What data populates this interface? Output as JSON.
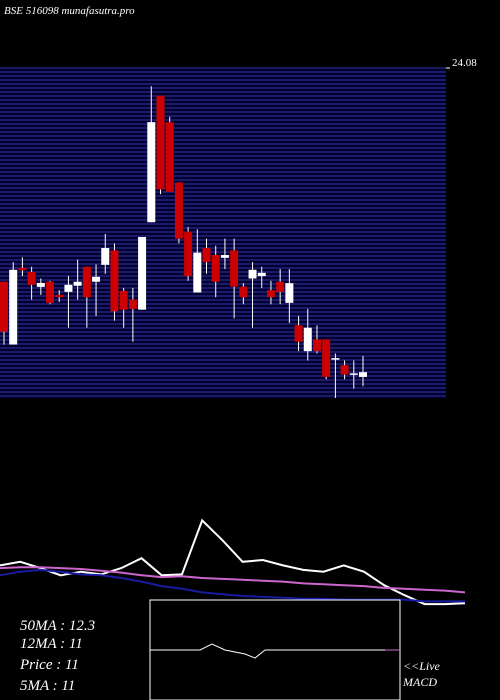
{
  "chart_data": {
    "type": "candlestick",
    "title": "BSE 516098 munafasutra.pro",
    "ylim": [
      10,
      24.08
    ],
    "yticks": [
      24.08
    ],
    "up_color": "#ffffff",
    "down_color": "#cc0000",
    "band_color": "#000033",
    "band_line_color": "#33339a",
    "open": [
      14.96,
      12.28,
      15.55,
      15.38,
      14.74,
      14.96,
      14.4,
      14.53,
      14.79,
      15.6,
      14.96,
      15.68,
      16.3,
      14.57,
      14.2,
      13.77,
      17.5,
      22.9,
      21.77,
      19.2,
      17.1,
      14.5,
      16.4,
      16.1,
      15.98,
      16.3,
      14.75,
      15.1,
      15.2,
      14.6,
      14.96,
      14.06,
      13.1,
      12.0,
      12.5,
      12.5,
      11.7,
      11.4,
      11.0,
      10.9
    ],
    "high": [
      14.96,
      15.8,
      16.0,
      15.6,
      15.1,
      15.0,
      14.6,
      15.2,
      15.9,
      15.6,
      15.7,
      17.0,
      16.6,
      14.7,
      14.7,
      16.87,
      23.3,
      22.9,
      22.0,
      19.2,
      17.3,
      17.2,
      16.8,
      16.5,
      16.8,
      16.8,
      14.9,
      15.8,
      15.6,
      15.0,
      15.5,
      15.5,
      13.5,
      13.8,
      13.1,
      12.5,
      11.9,
      11.6,
      11.6,
      11.8
    ],
    "low": [
      12.28,
      12.28,
      15.2,
      14.2,
      14.4,
      14.0,
      14.1,
      13.0,
      14.2,
      13.0,
      13.5,
      15.3,
      13.3,
      13.0,
      12.4,
      13.77,
      17.5,
      18.7,
      18.8,
      16.6,
      15.0,
      14.5,
      15.3,
      14.3,
      15.5,
      13.4,
      14.0,
      13.0,
      14.7,
      14.0,
      14.0,
      13.2,
      12.0,
      11.6,
      11.9,
      10.8,
      10.0,
      10.8,
      10.4,
      10.5
    ],
    "close": [
      12.83,
      15.47,
      15.45,
      14.83,
      14.91,
      14.06,
      14.3,
      14.83,
      14.96,
      14.3,
      15.17,
      16.4,
      13.7,
      13.77,
      13.8,
      16.87,
      21.77,
      18.9,
      18.8,
      16.8,
      15.2,
      16.2,
      15.8,
      14.96,
      16.1,
      14.75,
      14.3,
      15.47,
      15.34,
      14.3,
      14.53,
      14.9,
      12.4,
      13.0,
      12.0,
      10.9,
      11.7,
      11.0,
      11.05,
      11.1
    ],
    "lower_panel": {
      "type": "line",
      "ylim": [
        0,
        100
      ],
      "x": [
        0,
        1,
        2,
        3,
        4,
        5,
        6,
        7,
        8,
        9,
        10,
        11,
        12,
        13,
        14,
        15,
        16,
        17,
        18,
        19,
        20,
        21,
        22,
        23
      ],
      "xlim": [
        0,
        23
      ],
      "series": [
        {
          "color": "#ffffff",
          "values": [
            44,
            48,
            41,
            33,
            37,
            34,
            41,
            52,
            33,
            34,
            94,
            72,
            48,
            50,
            44,
            39,
            37,
            44,
            37,
            22,
            11,
            1,
            1,
            2
          ]
        },
        {
          "color": "#cc66cc",
          "values": [
            41,
            42,
            42,
            41,
            40,
            38,
            36,
            33,
            31,
            32,
            30,
            29,
            28,
            27,
            26,
            24,
            23,
            22,
            21,
            19,
            18,
            17,
            16,
            14
          ]
        },
        {
          "color": "#1a1aa0",
          "values": [
            33,
            37,
            39,
            37,
            34,
            33,
            30,
            26,
            21,
            18,
            14,
            12,
            10,
            9,
            8,
            7,
            7,
            6,
            6,
            6,
            6,
            4,
            4,
            4
          ]
        }
      ]
    },
    "ma_labels": [
      "50MA : 12.3",
      "12MA : 11",
      "Price  : 11",
      "5MA : 11"
    ],
    "macd_label_1": "<<Live",
    "macd_label_2": "MACD"
  }
}
